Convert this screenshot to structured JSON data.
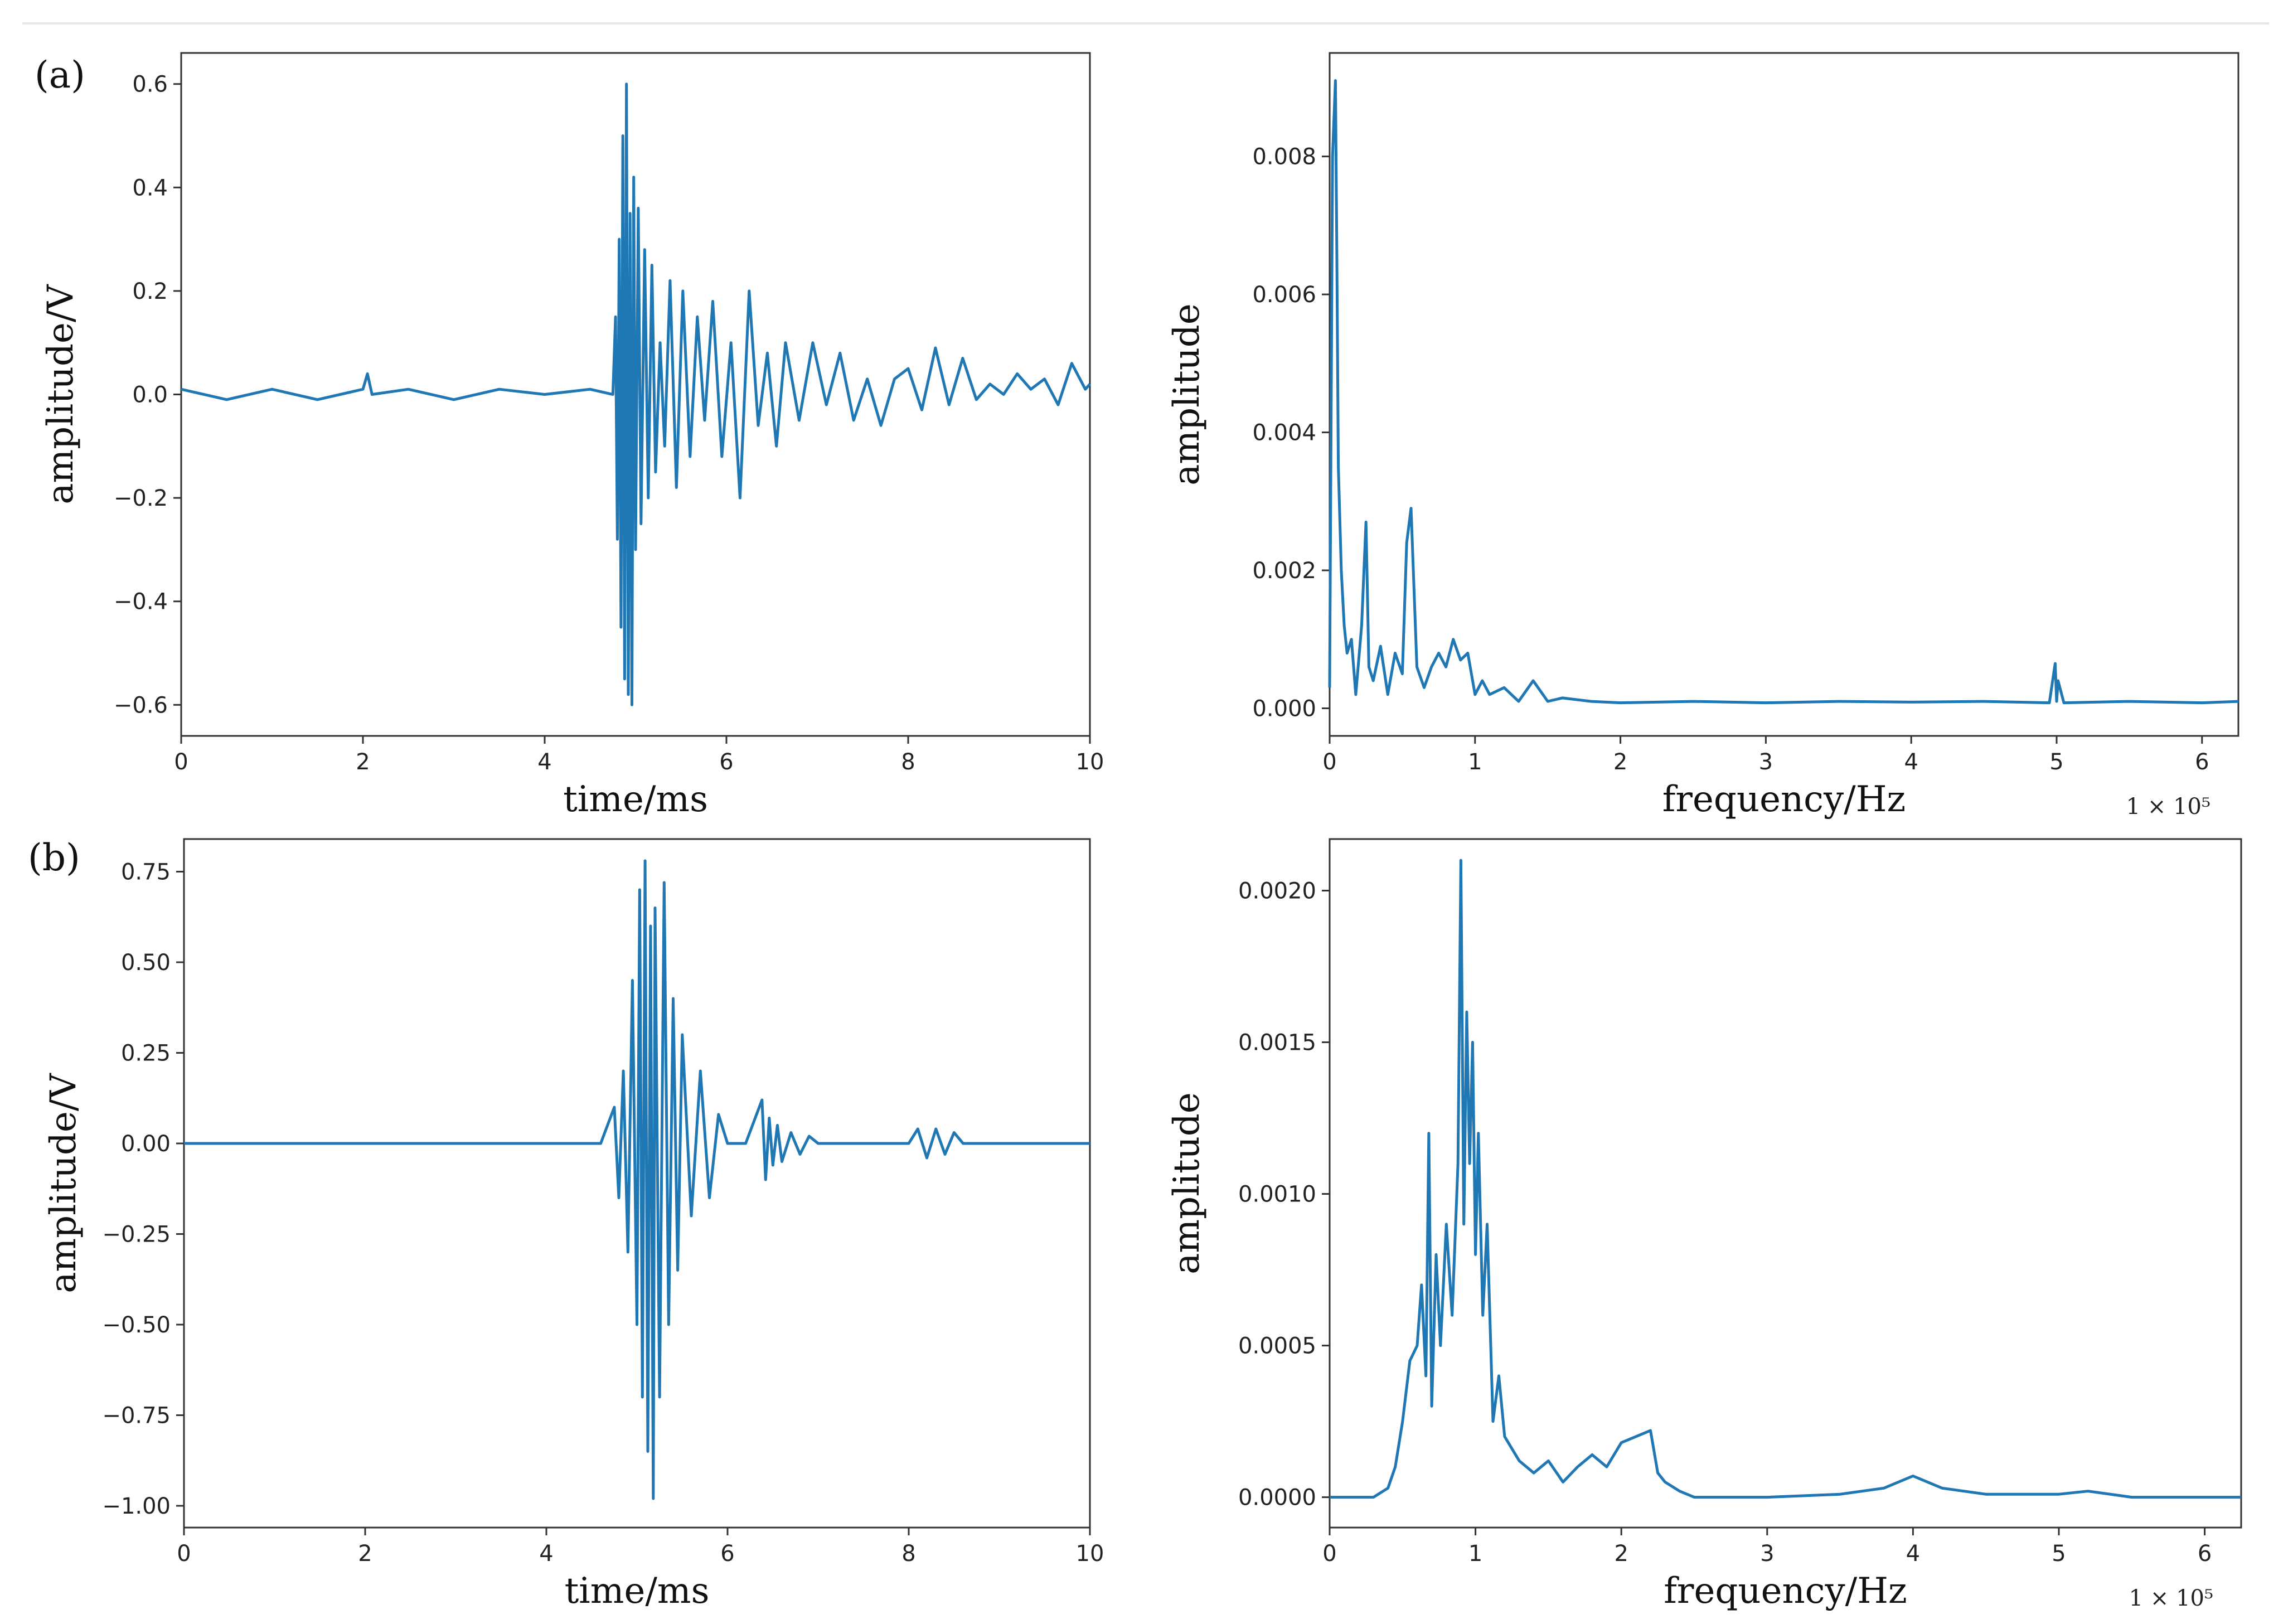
{
  "panel_labels": [
    "(a)",
    "(b)"
  ],
  "colors": {
    "line": "#1f77b4",
    "axes": "#333333",
    "background": "#ffffff"
  },
  "chart_data": [
    {
      "id": "a-time",
      "type": "line",
      "xlabel": "time/ms",
      "ylabel": "amplitude/V",
      "xlim": [
        0,
        10
      ],
      "ylim": [
        -0.66,
        0.66
      ],
      "xticks": [
        0,
        2,
        4,
        6,
        8,
        10
      ],
      "xtick_labels": [
        "0",
        "2",
        "4",
        "6",
        "8",
        "10"
      ],
      "yticks": [
        -0.6,
        -0.4,
        -0.2,
        0.0,
        0.2,
        0.4,
        0.6
      ],
      "ytick_labels": [
        "−0.6",
        "−0.4",
        "−0.2",
        "0.0",
        "0.2",
        "0.4",
        "0.6"
      ],
      "offset_text": "",
      "series": [
        {
          "x": [
            0,
            0.5,
            1,
            1.5,
            2,
            2.05,
            2.1,
            2.5,
            3,
            3.5,
            4,
            4.5,
            4.75,
            4.78,
            4.8,
            4.82,
            4.84,
            4.86,
            4.88,
            4.9,
            4.92,
            4.94,
            4.96,
            4.98,
            5.0,
            5.03,
            5.06,
            5.1,
            5.14,
            5.18,
            5.22,
            5.27,
            5.32,
            5.38,
            5.45,
            5.52,
            5.6,
            5.68,
            5.76,
            5.85,
            5.95,
            6.05,
            6.15,
            6.25,
            6.35,
            6.45,
            6.55,
            6.65,
            6.8,
            6.95,
            7.1,
            7.25,
            7.4,
            7.55,
            7.7,
            7.85,
            8.0,
            8.15,
            8.3,
            8.45,
            8.6,
            8.75,
            8.9,
            9.05,
            9.2,
            9.35,
            9.5,
            9.65,
            9.8,
            9.95,
            10.0
          ],
          "y": [
            0.01,
            -0.01,
            0.01,
            -0.01,
            0.01,
            0.04,
            0.0,
            0.01,
            -0.01,
            0.01,
            0.0,
            0.01,
            0.0,
            0.15,
            -0.28,
            0.3,
            -0.45,
            0.5,
            -0.55,
            0.6,
            -0.58,
            0.35,
            -0.6,
            0.42,
            -0.3,
            0.36,
            -0.25,
            0.28,
            -0.2,
            0.25,
            -0.15,
            0.1,
            -0.1,
            0.22,
            -0.18,
            0.2,
            -0.12,
            0.15,
            -0.05,
            0.18,
            -0.12,
            0.1,
            -0.2,
            0.2,
            -0.06,
            0.08,
            -0.1,
            0.1,
            -0.05,
            0.1,
            -0.02,
            0.08,
            -0.05,
            0.03,
            -0.06,
            0.03,
            0.05,
            -0.03,
            0.09,
            -0.02,
            0.07,
            -0.01,
            0.02,
            0.0,
            0.04,
            0.01,
            0.03,
            -0.02,
            0.06,
            0.01,
            0.02
          ]
        }
      ]
    },
    {
      "id": "a-freq",
      "type": "line",
      "xlabel": "frequency/Hz",
      "ylabel": "amplitude",
      "xlim": [
        0,
        6.25
      ],
      "ylim": [
        -0.0004,
        0.0095
      ],
      "xticks": [
        0,
        1,
        2,
        3,
        4,
        5,
        6
      ],
      "xtick_labels": [
        "0",
        "1",
        "2",
        "3",
        "4",
        "5",
        "6"
      ],
      "yticks": [
        0.0,
        0.002,
        0.004,
        0.006,
        0.008
      ],
      "ytick_labels": [
        "0.000",
        "0.002",
        "0.004",
        "0.006",
        "0.008"
      ],
      "offset_text": "1 × 10⁵",
      "series": [
        {
          "x": [
            0,
            0.02,
            0.04,
            0.05,
            0.06,
            0.08,
            0.1,
            0.12,
            0.15,
            0.18,
            0.22,
            0.25,
            0.27,
            0.3,
            0.35,
            0.4,
            0.45,
            0.5,
            0.53,
            0.56,
            0.6,
            0.65,
            0.7,
            0.75,
            0.8,
            0.85,
            0.9,
            0.95,
            1.0,
            1.05,
            1.1,
            1.2,
            1.3,
            1.4,
            1.5,
            1.6,
            1.8,
            2.0,
            2.5,
            3.0,
            3.5,
            4.0,
            4.5,
            4.95,
            4.99,
            5.0,
            5.01,
            5.05,
            5.5,
            6.0,
            6.25
          ],
          "y": [
            0.0003,
            0.008,
            0.0091,
            0.0065,
            0.0035,
            0.002,
            0.0012,
            0.0008,
            0.001,
            0.0002,
            0.0012,
            0.0027,
            0.0006,
            0.0004,
            0.0009,
            0.0002,
            0.0008,
            0.0005,
            0.0024,
            0.0029,
            0.0006,
            0.0003,
            0.0006,
            0.0008,
            0.0006,
            0.001,
            0.0007,
            0.0008,
            0.0002,
            0.0004,
            0.0002,
            0.0003,
            0.0001,
            0.0004,
            0.0001,
            0.00015,
            0.0001,
            8e-05,
            0.0001,
            8e-05,
            0.0001,
            9e-05,
            0.0001,
            8e-05,
            0.00065,
            0.0001,
            0.0004,
            8e-05,
            0.0001,
            8e-05,
            0.0001
          ]
        }
      ]
    },
    {
      "id": "b-time",
      "type": "line",
      "xlabel": "time/ms",
      "ylabel": "amplitude/V",
      "xlim": [
        0,
        10
      ],
      "ylim": [
        -1.06,
        0.84
      ],
      "xticks": [
        0,
        2,
        4,
        6,
        8,
        10
      ],
      "xtick_labels": [
        "0",
        "2",
        "4",
        "6",
        "8",
        "10"
      ],
      "yticks": [
        -1.0,
        -0.75,
        -0.5,
        -0.25,
        0.0,
        0.25,
        0.5,
        0.75
      ],
      "ytick_labels": [
        "−1.00",
        "−0.75",
        "−0.50",
        "−0.25",
        "0.00",
        "0.25",
        "0.50",
        "0.75"
      ],
      "offset_text": "",
      "series": [
        {
          "x": [
            0,
            1,
            2,
            3,
            4,
            4.6,
            4.75,
            4.8,
            4.85,
            4.9,
            4.95,
            5.0,
            5.03,
            5.06,
            5.09,
            5.12,
            5.15,
            5.18,
            5.2,
            5.25,
            5.3,
            5.35,
            5.4,
            5.45,
            5.5,
            5.6,
            5.7,
            5.8,
            5.9,
            6.0,
            6.2,
            6.38,
            6.42,
            6.46,
            6.5,
            6.55,
            6.6,
            6.7,
            6.8,
            6.9,
            7.0,
            7.2,
            7.5,
            8.0,
            8.1,
            8.2,
            8.3,
            8.4,
            8.5,
            8.6,
            9.0,
            10.0
          ],
          "y": [
            0.0,
            0.0,
            0.0,
            0.0,
            0.0,
            0.0,
            0.1,
            -0.15,
            0.2,
            -0.3,
            0.45,
            -0.5,
            0.7,
            -0.7,
            0.78,
            -0.85,
            0.6,
            -0.98,
            0.65,
            -0.7,
            0.72,
            -0.5,
            0.4,
            -0.35,
            0.3,
            -0.2,
            0.2,
            -0.15,
            0.08,
            0.0,
            0.0,
            0.12,
            -0.1,
            0.07,
            -0.06,
            0.05,
            -0.05,
            0.03,
            -0.03,
            0.02,
            0.0,
            0.0,
            0.0,
            0.0,
            0.04,
            -0.04,
            0.04,
            -0.03,
            0.03,
            0.0,
            0.0,
            0.0
          ]
        }
      ]
    },
    {
      "id": "b-freq",
      "type": "line",
      "xlabel": "frequency/Hz",
      "ylabel": "amplitude",
      "xlim": [
        0,
        6.25
      ],
      "ylim": [
        -0.0001,
        0.00217
      ],
      "xticks": [
        0,
        1,
        2,
        3,
        4,
        5,
        6
      ],
      "xtick_labels": [
        "0",
        "1",
        "2",
        "3",
        "4",
        "5",
        "6"
      ],
      "yticks": [
        0.0,
        0.0005,
        0.001,
        0.0015,
        0.002
      ],
      "ytick_labels": [
        "0.0000",
        "0.0005",
        "0.0010",
        "0.0015",
        "0.0020"
      ],
      "offset_text": "1 × 10⁵",
      "series": [
        {
          "x": [
            0,
            0.3,
            0.4,
            0.45,
            0.5,
            0.55,
            0.6,
            0.63,
            0.66,
            0.68,
            0.7,
            0.73,
            0.76,
            0.8,
            0.84,
            0.88,
            0.9,
            0.92,
            0.94,
            0.96,
            0.98,
            1.0,
            1.02,
            1.05,
            1.08,
            1.12,
            1.16,
            1.2,
            1.3,
            1.4,
            1.5,
            1.6,
            1.7,
            1.8,
            1.9,
            2.0,
            2.1,
            2.2,
            2.25,
            2.3,
            2.4,
            2.5,
            3.0,
            3.5,
            3.8,
            4.0,
            4.1,
            4.2,
            4.5,
            5.0,
            5.2,
            5.5,
            6.0,
            6.25
          ],
          "y": [
            0.0,
            0.0,
            3e-05,
            0.0001,
            0.00025,
            0.00045,
            0.0005,
            0.0007,
            0.0004,
            0.0012,
            0.0003,
            0.0008,
            0.0005,
            0.0009,
            0.0006,
            0.0011,
            0.0021,
            0.0009,
            0.0016,
            0.0011,
            0.0015,
            0.0008,
            0.0012,
            0.0006,
            0.0009,
            0.00025,
            0.0004,
            0.0002,
            0.00012,
            8e-05,
            0.00012,
            5e-05,
            0.0001,
            0.00014,
            0.0001,
            0.00018,
            0.0002,
            0.00022,
            8e-05,
            5e-05,
            2e-05,
            0.0,
            0.0,
            1e-05,
            3e-05,
            7e-05,
            5e-05,
            3e-05,
            1e-05,
            1e-05,
            2e-05,
            0.0,
            0.0,
            0.0
          ]
        }
      ]
    }
  ]
}
